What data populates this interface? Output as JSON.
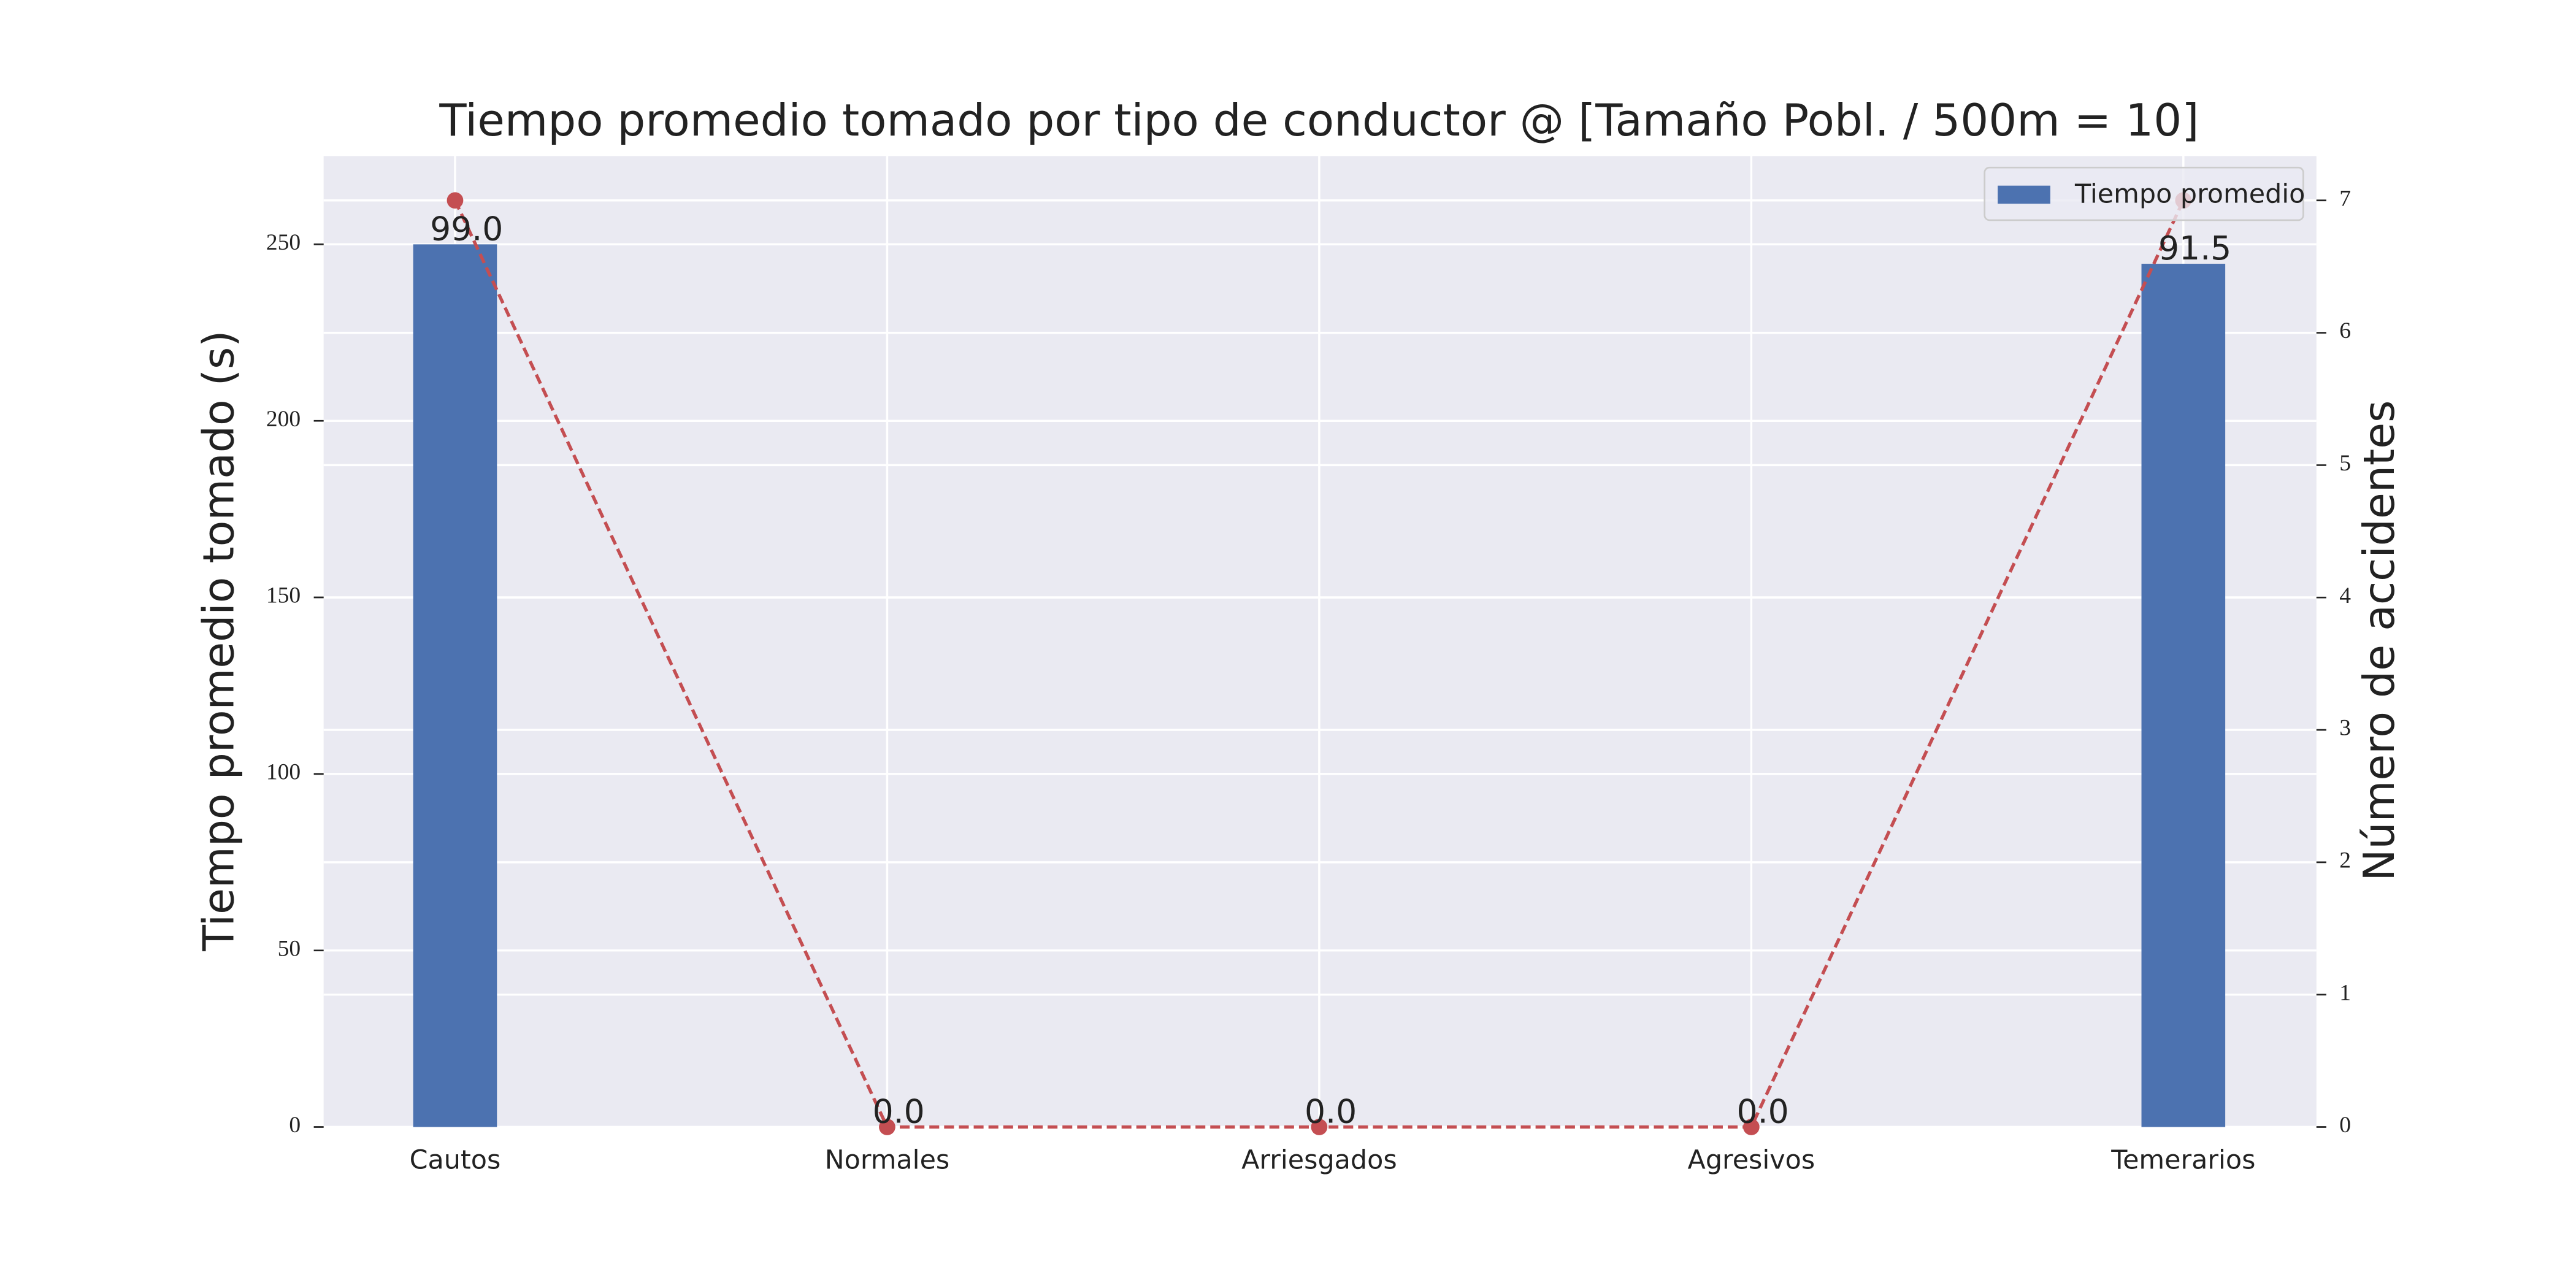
{
  "chart_data": {
    "type": "bar",
    "title": "Tiempo promedio tomado por tipo de conductor @ [Tamaño Pobl. / 500m = 10]",
    "ylabel": "Tiempo promedio tomado (s)",
    "y2label": "Número de accidentes",
    "categories": [
      "Cautos",
      "Normales",
      "Arriesgados",
      "Agresivos",
      "Temerarios"
    ],
    "series": [
      {
        "name": "Tiempo promedio",
        "type": "bar",
        "color": "#4c72b0",
        "values": [
          250,
          0,
          0,
          0,
          244.5
        ]
      },
      {
        "type": "line",
        "axis": "y2",
        "color": "#c44e52",
        "values": [
          7,
          0,
          0,
          0,
          7
        ]
      }
    ],
    "annotations": [
      "99.0",
      "0.0",
      "0.0",
      "0.0",
      "91.5"
    ],
    "ylim": [
      0,
      275
    ],
    "yticks": [
      0,
      50,
      100,
      150,
      200,
      250
    ],
    "y2lim": [
      0,
      7.335
    ],
    "y2ticks": [
      0,
      1,
      2,
      3,
      4,
      5,
      6,
      7
    ],
    "grid": true,
    "legend": "upper right"
  }
}
